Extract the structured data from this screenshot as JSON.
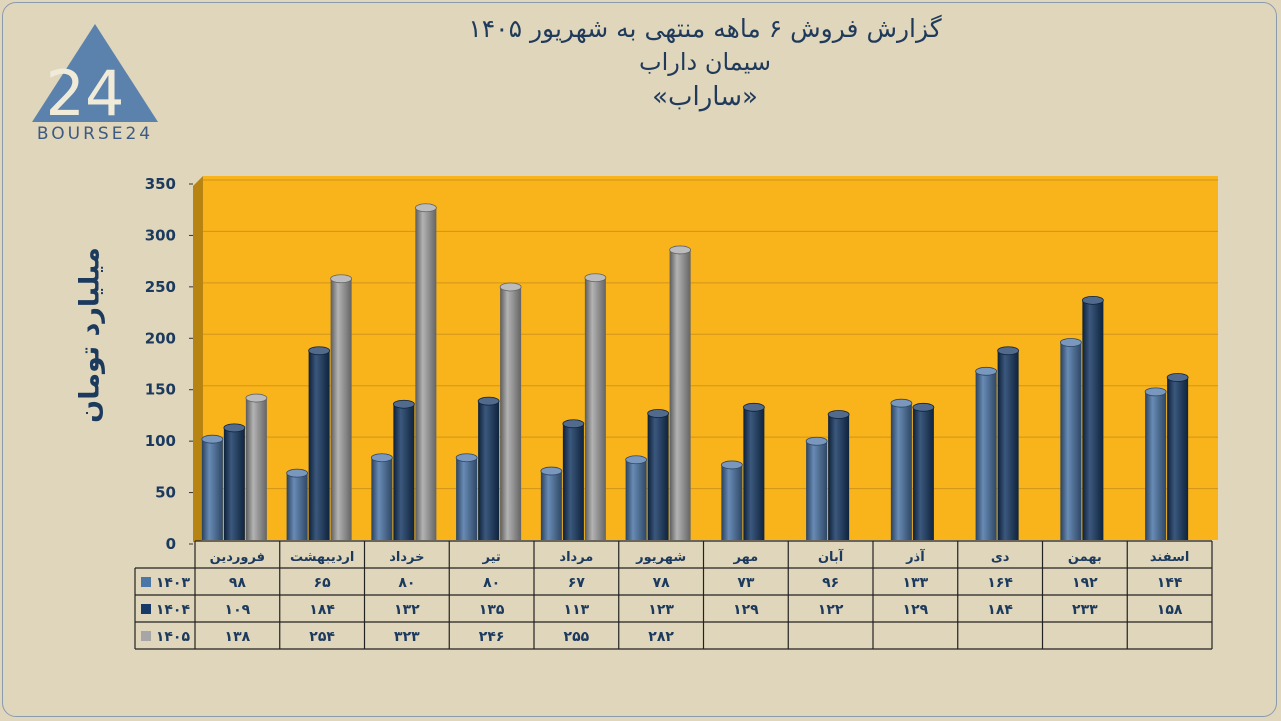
{
  "title": {
    "line1": "گزارش فروش ۶ ماهه منتهی به شهریور ۱۴۰۵",
    "line2": "سیمان داراب",
    "line3": "«ساراب»"
  },
  "logo": {
    "text": "BOURSE24",
    "mark": "24"
  },
  "colors": {
    "plot_bg": "#f8b41a",
    "page_bg": "#e0d6bb",
    "series_1403": "#4d76a8",
    "series_1404": "#183a66",
    "series_1405": "#a6a6a6",
    "text": "#1f3a5a"
  },
  "chart_data": {
    "type": "bar",
    "ylabel": "میلیارد تومان",
    "ylim": [
      0,
      350
    ],
    "yticks": [
      0,
      50,
      100,
      150,
      200,
      250,
      300,
      350
    ],
    "ytick_labels": [
      "0",
      "50",
      "100",
      "150",
      "200",
      "250",
      "300",
      "350"
    ],
    "grid": true,
    "legend": "table-left",
    "categories": [
      "فروردین",
      "اردیبهشت",
      "خرداد",
      "تیر",
      "مرداد",
      "شهریور",
      "مهر",
      "آبان",
      "آذر",
      "دی",
      "بهمن",
      "اسفند"
    ],
    "series": [
      {
        "name": "1403",
        "label": "۱۴۰۳",
        "color": "#4d76a8",
        "values": [
          98,
          65,
          80,
          80,
          67,
          78,
          73,
          96,
          133,
          164,
          192,
          144
        ],
        "labels": [
          "۹۸",
          "۶۵",
          "۸۰",
          "۸۰",
          "۶۷",
          "۷۸",
          "۷۳",
          "۹۶",
          "۱۳۳",
          "۱۶۴",
          "۱۹۲",
          "۱۴۴"
        ]
      },
      {
        "name": "1404",
        "label": "۱۴۰۴",
        "color": "#183a66",
        "values": [
          109,
          184,
          132,
          135,
          113,
          123,
          129,
          122,
          129,
          184,
          233,
          158
        ],
        "labels": [
          "۱۰۹",
          "۱۸۴",
          "۱۳۲",
          "۱۳۵",
          "۱۱۳",
          "۱۲۳",
          "۱۲۹",
          "۱۲۲",
          "۱۲۹",
          "۱۸۴",
          "۲۳۳",
          "۱۵۸"
        ]
      },
      {
        "name": "1405",
        "label": "۱۴۰۵",
        "color": "#a6a6a6",
        "values": [
          138,
          254,
          323,
          246,
          255,
          282,
          null,
          null,
          null,
          null,
          null,
          null
        ],
        "labels": [
          "۱۳۸",
          "۲۵۴",
          "۳۲۳",
          "۲۴۶",
          "۲۵۵",
          "۲۸۲",
          "",
          "",
          "",
          "",
          "",
          ""
        ]
      }
    ]
  }
}
